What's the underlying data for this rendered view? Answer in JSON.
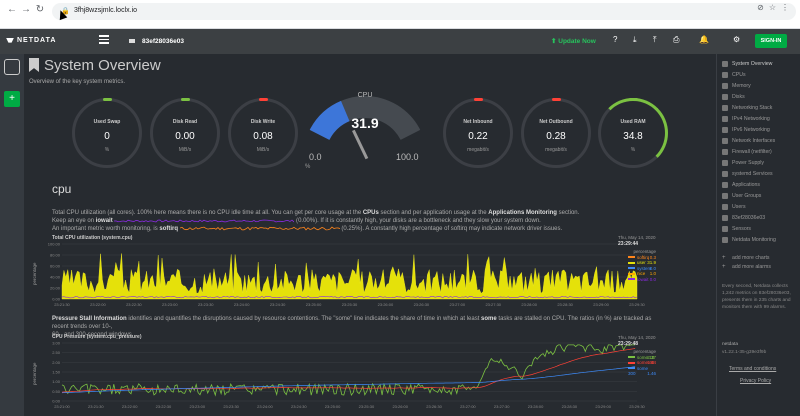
{
  "browser": {
    "url": "3fhj8wzsjmlc.loclx.io"
  },
  "topbar": {
    "logo": "NETDATA",
    "hostname": "83ef28036e03",
    "update": "Update Now",
    "signin": "SIGN-IN"
  },
  "page": {
    "title": "System Overview",
    "subtitle": "Overview of the key system metrics."
  },
  "gauges": [
    {
      "label": "Used Swap",
      "value": "0",
      "unit": "%",
      "color": "#7bc142",
      "fill": 0.0
    },
    {
      "label": "Disk Read",
      "value": "0.00",
      "unit": "MiB/s",
      "color": "#7bc142",
      "fill": 0.0
    },
    {
      "label": "Disk Write",
      "value": "0.08",
      "unit": "MiB/s",
      "color": "#ff4136",
      "fill": 0.0
    },
    {
      "label": "Net Inbound",
      "value": "0.22",
      "unit": "megabit/s",
      "color": "#ff4136",
      "fill": 0.0
    },
    {
      "label": "Net Outbound",
      "value": "0.28",
      "unit": "megabit/s",
      "color": "#ff4136",
      "fill": 0.0
    },
    {
      "label": "Used RAM",
      "value": "34.8",
      "unit": "%",
      "color": "#7bc142",
      "fill": 0.35
    }
  ],
  "cpu_gauge": {
    "title": "CPU",
    "value": "31.9",
    "min": "0.0",
    "max": "100.0",
    "unit": "%",
    "fill": 0.319
  },
  "section": {
    "title": "cpu"
  },
  "cpu_desc": {
    "l1a": "Total CPU utilization (all cores). 100% here means there is no CPU idle time at all. You can get per core usage at the ",
    "l1b": "CPUs",
    "l1c": " section and per application usage at the ",
    "l1d": "Applications Monitoring",
    "l1e": " section.",
    "l2a": "Keep an eye on ",
    "l2b": "iowait",
    "l2c": "0.00%). If it is constantly high, your disks are a bottleneck and they slow your system down.",
    "l3a": "An important metric worth monitoring, is ",
    "l3b": "softirq",
    "l3c": "0.25%). A constantly high percentage of softirq may indicate network driver issues."
  },
  "cpu_chart": {
    "title": "Total CPU utilization (system.cpu)",
    "ylabel": "percentage",
    "date": "Thu, May 14, 2020",
    "time": "23:29:44",
    "legend_title": "percentage",
    "series": [
      {
        "name": "softirq",
        "value": "0.3",
        "color": "#ff851b"
      },
      {
        "name": "user",
        "value": "31.9",
        "color": "#e5e10a"
      },
      {
        "name": "system",
        "value": "0.0",
        "color": "#3d8af7"
      },
      {
        "name": "nice",
        "value": "1.0",
        "color": "#ffa500"
      },
      {
        "name": "iowait",
        "value": "0.0",
        "color": "#8a2be2"
      }
    ],
    "yticks": [
      "100.00",
      "80.00",
      "60.00",
      "40.00",
      "20.00",
      "0.00"
    ],
    "xticks": [
      "23:21:30",
      "23:22:00",
      "23:22:30",
      "23:23:00",
      "23:23:30",
      "23:24:00",
      "23:24:30",
      "23:25:00",
      "23:25:30",
      "23:26:00",
      "23:26:30",
      "23:27:00",
      "23:27:30",
      "23:28:00",
      "23:28:30",
      "23:29:00",
      "23:29:30"
    ]
  },
  "psi_desc": {
    "a": "Pressure Stall Information",
    "b": " identifies and quantifies the disruptions caused by resource contentions. The \"some\" line indicates the share of time in which at least ",
    "c": "some",
    "d": " tasks are stalled on CPU. The ratios (in %) are tracked as recent trends over 10-,",
    "e": "60-, and 300-second windows."
  },
  "psi_chart": {
    "title": "CPU Pressure (system.cpu_pressure)",
    "ylabel": "percentage",
    "date": "Thu, May 14, 2020",
    "time": "23:29:48",
    "legend_title": "percentage",
    "series": [
      {
        "name": "some 10",
        "value": "2.37",
        "color": "#7bc142"
      },
      {
        "name": "some 60",
        "value": "1.64",
        "color": "#ff4136"
      },
      {
        "name": "some 300",
        "value": "1.46",
        "color": "#3d8af7"
      }
    ],
    "yticks": [
      "3.00",
      "2.50",
      "2.00",
      "1.50",
      "1.00",
      "0.50",
      "0.00"
    ],
    "xticks": [
      "23:21:00",
      "23:21:30",
      "23:22:00",
      "23:22:30",
      "23:23:00",
      "23:23:30",
      "23:24:00",
      "23:24:30",
      "23:25:00",
      "23:25:30",
      "23:26:00",
      "23:26:30",
      "23:27:00",
      "23:27:30",
      "23:28:00",
      "23:28:30",
      "23:29:00",
      "23:29:30"
    ]
  },
  "sidebar": {
    "items": [
      "System Overview",
      "CPUs",
      "Memory",
      "Disks",
      "Networking Stack",
      "IPv4 Networking",
      "IPv6 Networking",
      "Network Interfaces",
      "Firewall (netfilter)",
      "Power Supply",
      "systemd Services",
      "Applications",
      "User Groups",
      "Users",
      "83ef28036e03",
      "Sensors",
      "Netdata Monitoring"
    ],
    "add_charts": "add more charts",
    "add_alarms": "add more alarms",
    "info": "Every second, Netdata collects 1,242 metrics on 83ef28036e03, presents them in 235 charts and monitors them with 99 alarms.",
    "netdata_label": "netdata",
    "version": "v1.22.1-35-g39e3f9b",
    "terms": "Terms and conditions",
    "privacy": "Privacy Policy"
  }
}
